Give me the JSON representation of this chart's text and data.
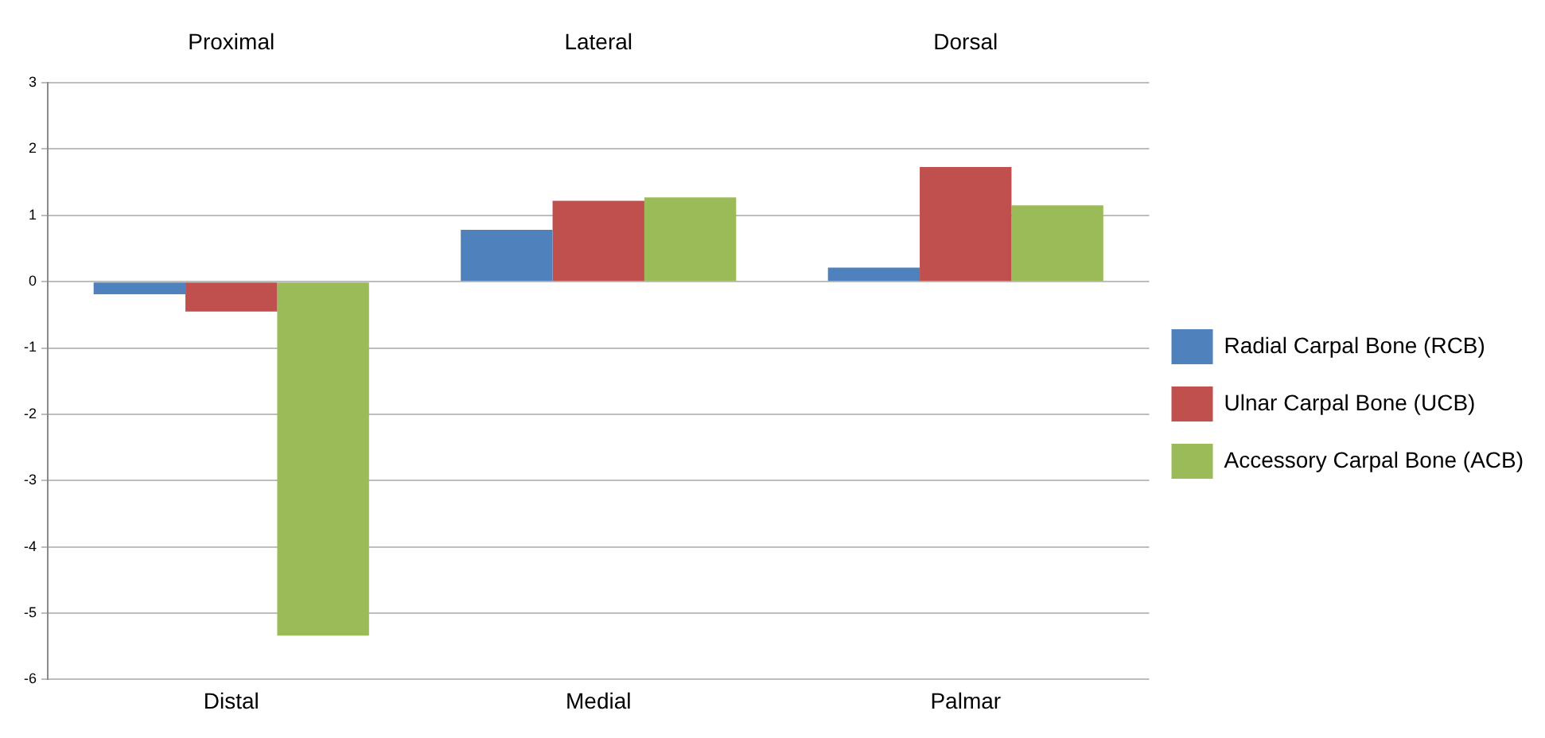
{
  "chart_data": {
    "type": "bar",
    "categories": [
      "Distal",
      "Medial",
      "Palmar"
    ],
    "annotations": [
      "Proximal",
      "Lateral",
      "Dorsal"
    ],
    "series": [
      {
        "name": "Radial Carpal Bone (RCB)",
        "color": "#4f81bd",
        "values": [
          -0.19,
          0.78,
          0.21
        ]
      },
      {
        "name": "Ulnar Carpal Bone (UCB)",
        "color": "#c0504d",
        "values": [
          -0.45,
          1.22,
          1.73
        ]
      },
      {
        "name": "Accessory Carpal Bone (ACB)",
        "color": "#9bbb59",
        "values": [
          -5.34,
          1.27,
          1.15
        ]
      }
    ],
    "ylim": [
      -6,
      3
    ],
    "yticks": [
      -6,
      -5,
      -4,
      -3,
      -2,
      -1,
      0,
      1,
      2,
      3
    ],
    "grid": "y",
    "legend": "right"
  }
}
